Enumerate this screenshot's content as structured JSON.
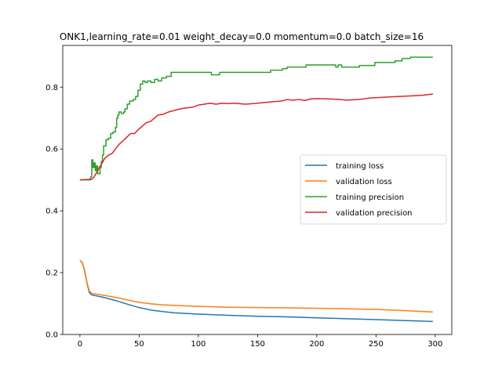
{
  "chart_data": {
    "type": "line",
    "title": "ONK1,learning_rate=0.01  weight_decay=0.0  momentum=0.0  batch_size=16",
    "xlabel": "",
    "ylabel": "",
    "xlim": [
      -14.5,
      314
    ],
    "ylim": [
      0.0,
      0.935
    ],
    "xticks": [
      0,
      50,
      100,
      150,
      200,
      250,
      300
    ],
    "yticks": [
      0.0,
      0.2,
      0.4,
      0.6,
      0.8
    ],
    "ytick_labels": [
      "0.0",
      "0.2",
      "0.4",
      "0.6",
      "0.8"
    ],
    "grid": false,
    "legend_position": "center-right",
    "series": [
      {
        "name": "training loss",
        "color": "#1f77b4",
        "step": false,
        "points": [
          [
            0,
            0.24
          ],
          [
            2,
            0.232
          ],
          [
            4,
            0.205
          ],
          [
            6,
            0.165
          ],
          [
            8,
            0.135
          ],
          [
            10,
            0.128
          ],
          [
            15,
            0.124
          ],
          [
            20,
            0.12
          ],
          [
            30,
            0.11
          ],
          [
            40,
            0.098
          ],
          [
            50,
            0.087
          ],
          [
            60,
            0.079
          ],
          [
            70,
            0.074
          ],
          [
            80,
            0.07
          ],
          [
            100,
            0.066
          ],
          [
            125,
            0.062
          ],
          [
            150,
            0.059
          ],
          [
            175,
            0.057
          ],
          [
            200,
            0.054
          ],
          [
            225,
            0.051
          ],
          [
            250,
            0.048
          ],
          [
            275,
            0.045
          ],
          [
            298,
            0.042
          ]
        ]
      },
      {
        "name": "validation loss",
        "color": "#ff7f0e",
        "step": false,
        "points": [
          [
            0,
            0.24
          ],
          [
            2,
            0.233
          ],
          [
            4,
            0.208
          ],
          [
            6,
            0.168
          ],
          [
            8,
            0.14
          ],
          [
            10,
            0.133
          ],
          [
            15,
            0.13
          ],
          [
            20,
            0.127
          ],
          [
            30,
            0.12
          ],
          [
            40,
            0.112
          ],
          [
            50,
            0.104
          ],
          [
            60,
            0.099
          ],
          [
            70,
            0.096
          ],
          [
            80,
            0.094
          ],
          [
            100,
            0.091
          ],
          [
            125,
            0.088
          ],
          [
            150,
            0.087
          ],
          [
            175,
            0.086
          ],
          [
            200,
            0.085
          ],
          [
            225,
            0.083
          ],
          [
            250,
            0.081
          ],
          [
            275,
            0.077
          ],
          [
            298,
            0.073
          ]
        ]
      },
      {
        "name": "training precision",
        "color": "#2ca02c",
        "step": true,
        "points": [
          [
            0,
            0.5
          ],
          [
            8,
            0.5
          ],
          [
            9,
            0.51
          ],
          [
            10,
            0.565
          ],
          [
            11,
            0.54
          ],
          [
            12,
            0.555
          ],
          [
            13,
            0.53
          ],
          [
            14,
            0.545
          ],
          [
            15,
            0.52
          ],
          [
            17,
            0.54
          ],
          [
            18,
            0.56
          ],
          [
            19,
            0.58
          ],
          [
            20,
            0.61
          ],
          [
            22,
            0.63
          ],
          [
            24,
            0.635
          ],
          [
            26,
            0.65
          ],
          [
            28,
            0.655
          ],
          [
            30,
            0.67
          ],
          [
            31,
            0.7
          ],
          [
            32,
            0.71
          ],
          [
            33,
            0.72
          ],
          [
            35,
            0.715
          ],
          [
            37,
            0.72
          ],
          [
            38,
            0.73
          ],
          [
            40,
            0.745
          ],
          [
            42,
            0.755
          ],
          [
            45,
            0.76
          ],
          [
            47,
            0.77
          ],
          [
            49,
            0.79
          ],
          [
            51,
            0.81
          ],
          [
            53,
            0.82
          ],
          [
            55,
            0.815
          ],
          [
            57,
            0.82
          ],
          [
            60,
            0.815
          ],
          [
            63,
            0.825
          ],
          [
            66,
            0.82
          ],
          [
            69,
            0.83
          ],
          [
            73,
            0.835
          ],
          [
            77,
            0.848
          ],
          [
            110,
            0.848
          ],
          [
            111,
            0.84
          ],
          [
            117,
            0.84
          ],
          [
            118,
            0.848
          ],
          [
            160,
            0.848
          ],
          [
            161,
            0.855
          ],
          [
            170,
            0.855
          ],
          [
            171,
            0.86
          ],
          [
            175,
            0.865
          ],
          [
            190,
            0.865
          ],
          [
            191,
            0.872
          ],
          [
            215,
            0.872
          ],
          [
            216,
            0.865
          ],
          [
            218,
            0.872
          ],
          [
            220,
            0.872
          ],
          [
            221,
            0.865
          ],
          [
            235,
            0.865
          ],
          [
            236,
            0.87
          ],
          [
            248,
            0.87
          ],
          [
            249,
            0.88
          ],
          [
            265,
            0.88
          ],
          [
            266,
            0.885
          ],
          [
            270,
            0.885
          ],
          [
            272,
            0.893
          ],
          [
            278,
            0.893
          ],
          [
            279,
            0.897
          ],
          [
            298,
            0.897
          ]
        ]
      },
      {
        "name": "validation precision",
        "color": "#d62728",
        "step": false,
        "points": [
          [
            0,
            0.5
          ],
          [
            10,
            0.502
          ],
          [
            12,
            0.51
          ],
          [
            15,
            0.53
          ],
          [
            18,
            0.55
          ],
          [
            21,
            0.57
          ],
          [
            24,
            0.58
          ],
          [
            27,
            0.585
          ],
          [
            30,
            0.6
          ],
          [
            33,
            0.615
          ],
          [
            36,
            0.625
          ],
          [
            40,
            0.64
          ],
          [
            43,
            0.65
          ],
          [
            46,
            0.65
          ],
          [
            50,
            0.665
          ],
          [
            53,
            0.675
          ],
          [
            56,
            0.685
          ],
          [
            60,
            0.69
          ],
          [
            63,
            0.7
          ],
          [
            66,
            0.71
          ],
          [
            70,
            0.712
          ],
          [
            75,
            0.72
          ],
          [
            80,
            0.725
          ],
          [
            85,
            0.73
          ],
          [
            90,
            0.733
          ],
          [
            95,
            0.735
          ],
          [
            100,
            0.742
          ],
          [
            105,
            0.745
          ],
          [
            110,
            0.748
          ],
          [
            115,
            0.745
          ],
          [
            120,
            0.748
          ],
          [
            125,
            0.747
          ],
          [
            130,
            0.748
          ],
          [
            140,
            0.745
          ],
          [
            150,
            0.748
          ],
          [
            160,
            0.752
          ],
          [
            170,
            0.755
          ],
          [
            175,
            0.76
          ],
          [
            180,
            0.758
          ],
          [
            185,
            0.76
          ],
          [
            190,
            0.757
          ],
          [
            195,
            0.762
          ],
          [
            200,
            0.763
          ],
          [
            210,
            0.762
          ],
          [
            220,
            0.76
          ],
          [
            225,
            0.758
          ],
          [
            235,
            0.76
          ],
          [
            245,
            0.765
          ],
          [
            255,
            0.767
          ],
          [
            260,
            0.768
          ],
          [
            270,
            0.77
          ],
          [
            280,
            0.772
          ],
          [
            290,
            0.774
          ],
          [
            298,
            0.778
          ]
        ]
      }
    ]
  }
}
